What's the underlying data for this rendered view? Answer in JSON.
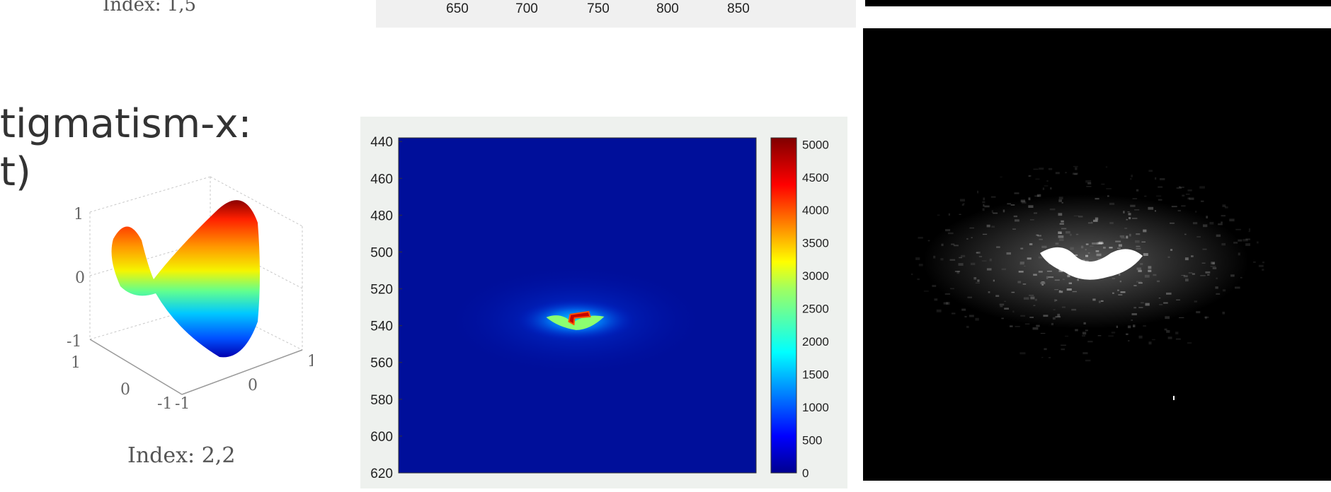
{
  "slide": {
    "top_fragment": "Index: 1,5",
    "title_line1": "tigmatism-x:",
    "title_line2": "t)",
    "surface_index_label": "Index: 2,2"
  },
  "surface_plot": {
    "z_ticks": [
      "1",
      "0",
      "-1"
    ],
    "x_ticks": [
      "1",
      "0",
      "-1"
    ],
    "y_ticks": [
      "-1",
      "0",
      "1"
    ]
  },
  "chart_data": [
    {
      "type": "heatmap",
      "note": "top chart, only x tick labels visible",
      "xticks": [
        650,
        700,
        750,
        800,
        850
      ],
      "xlim": [
        617,
        912
      ]
    },
    {
      "type": "heatmap",
      "colormap": "jet",
      "yticks": [
        440,
        460,
        480,
        500,
        520,
        540,
        560,
        580,
        600,
        620
      ],
      "ylim": [
        438,
        620
      ],
      "xlim": [
        600,
        850
      ],
      "colorbar_ticks": [
        0,
        500,
        1000,
        1500,
        2000,
        2500,
        3000,
        3500,
        4000,
        4500,
        5000
      ],
      "clim": [
        0,
        5100
      ],
      "peak": {
        "x": 724,
        "y": 537,
        "value": 5000
      },
      "grid": false
    }
  ],
  "colors": {
    "slide_text": "#333333",
    "jet_background": "#000f9a",
    "chart_panel": "#eef1ee"
  }
}
